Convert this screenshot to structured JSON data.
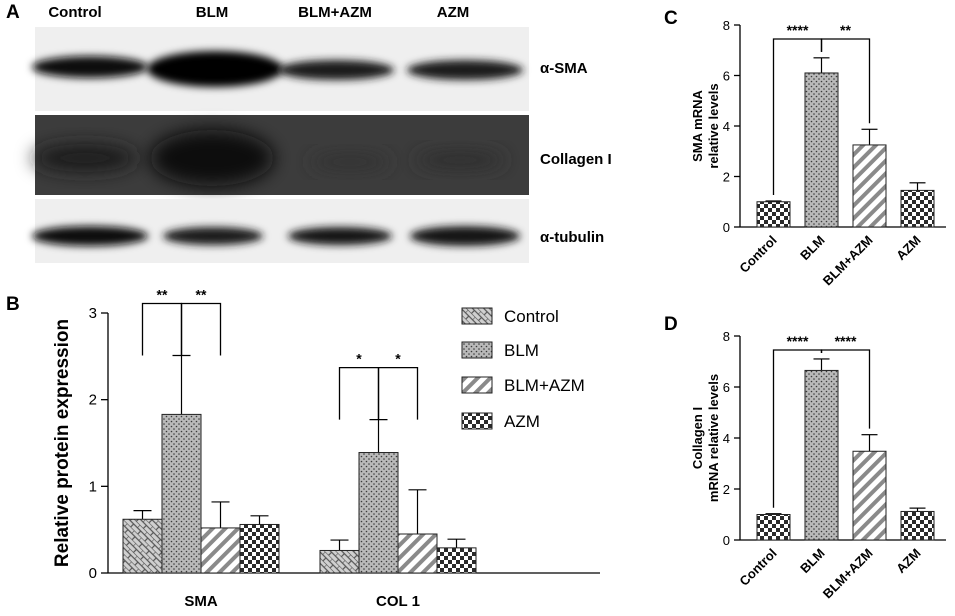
{
  "panels": {
    "a": "A",
    "b": "B",
    "c": "C",
    "d": "D"
  },
  "blot": {
    "lanes": [
      "Control",
      "BLM",
      "BLM+AZM",
      "AZM"
    ],
    "rows": [
      "α-SMA",
      "Collagen I",
      "α-tubulin"
    ]
  },
  "colors": {
    "bar_fill": "#ffffff",
    "bar_stroke": "#222222",
    "blot_bg_light": "#efefef",
    "blot_bg_dark": "#3a3a3a"
  },
  "chart_data": [
    {
      "id": "B",
      "type": "bar",
      "ylabel": "Relative protein expression",
      "ylim": [
        0,
        3
      ],
      "yticks": [
        0,
        1,
        2,
        3
      ],
      "categories": [
        "SMA",
        "COL 1"
      ],
      "legend_position": "right",
      "series": [
        {
          "name": "Control",
          "pattern": "brick",
          "values": [
            0.62,
            0.26
          ],
          "errors": [
            0.1,
            0.12
          ]
        },
        {
          "name": "BLM",
          "pattern": "dots",
          "values": [
            1.83,
            1.39
          ],
          "errors": [
            0.68,
            0.38
          ]
        },
        {
          "name": "BLM+AZM",
          "pattern": "diagonal",
          "values": [
            0.52,
            0.45
          ],
          "errors": [
            0.3,
            0.51
          ]
        },
        {
          "name": "AZM",
          "pattern": "checker",
          "values": [
            0.56,
            0.29
          ],
          "errors": [
            0.1,
            0.1
          ]
        }
      ],
      "significance": [
        {
          "category": "SMA",
          "from": "Control",
          "to": "BLM",
          "label": "**"
        },
        {
          "category": "SMA",
          "from": "BLM",
          "to": "BLM+AZM",
          "label": "**"
        },
        {
          "category": "COL 1",
          "from": "Control",
          "to": "BLM",
          "label": "*"
        },
        {
          "category": "COL 1",
          "from": "BLM",
          "to": "BLM+AZM",
          "label": "*"
        }
      ]
    },
    {
      "id": "C",
      "type": "bar",
      "ylabel": "SMA mRNA relative levels",
      "ylabel_lines": [
        "SMA mRNA",
        "relative levels"
      ],
      "ylim": [
        0,
        8
      ],
      "yticks": [
        0,
        2,
        4,
        6,
        8
      ],
      "categories": [
        "Control",
        "BLM",
        "BLM+AZM",
        "AZM"
      ],
      "patterns": [
        "checker",
        "dots",
        "diagonal",
        "checker"
      ],
      "values": [
        1.0,
        6.1,
        3.25,
        1.45
      ],
      "errors": [
        0.03,
        0.6,
        0.62,
        0.3
      ],
      "significance": [
        {
          "from": "Control",
          "to": "BLM",
          "label": "****"
        },
        {
          "from": "BLM",
          "to": "BLM+AZM",
          "label": "**"
        }
      ]
    },
    {
      "id": "D",
      "type": "bar",
      "ylabel": "Collagen I mRNA relative levels",
      "ylabel_lines": [
        "Collagen I",
        "mRNA relative levels"
      ],
      "ylim": [
        0,
        8
      ],
      "yticks": [
        0,
        2,
        4,
        6,
        8
      ],
      "categories": [
        "Control",
        "BLM",
        "BLM+AZM",
        "AZM"
      ],
      "patterns": [
        "checker",
        "dots",
        "diagonal",
        "checker"
      ],
      "values": [
        1.0,
        6.65,
        3.48,
        1.12
      ],
      "errors": [
        0.03,
        0.45,
        0.65,
        0.13
      ],
      "significance": [
        {
          "from": "Control",
          "to": "BLM",
          "label": "****"
        },
        {
          "from": "BLM",
          "to": "BLM+AZM",
          "label": "****"
        }
      ]
    }
  ]
}
